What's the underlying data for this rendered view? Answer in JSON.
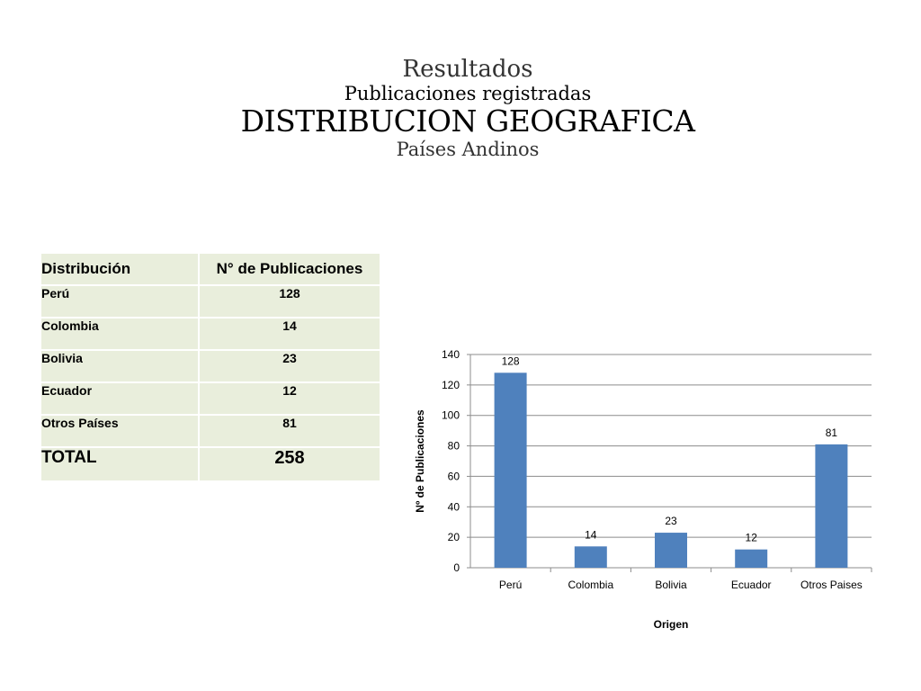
{
  "header": {
    "title": "Resultados",
    "subtitle": "Publicaciones registradas",
    "heading": "DISTRIBUCION GEOGRAFICA",
    "region": "Países Andinos"
  },
  "table": {
    "col1": "Distribución",
    "col2": "N° de Publicaciones",
    "rows": [
      {
        "name": "Perú",
        "value": "128"
      },
      {
        "name": "Colombia",
        "value": "14"
      },
      {
        "name": "Bolivia",
        "value": "23"
      },
      {
        "name": "Ecuador",
        "value": "12"
      },
      {
        "name": "Otros Países",
        "value": "81"
      }
    ],
    "total_label": "TOTAL",
    "total_value": "258"
  },
  "chart_data": {
    "type": "bar",
    "categories": [
      "Perú",
      "Colombia",
      "Bolivia",
      "Ecuador",
      "Otros Paises"
    ],
    "values": [
      128,
      14,
      23,
      12,
      81
    ],
    "title": "",
    "xlabel": "Origen",
    "ylabel": "Nº de Publicaciones",
    "ylim": [
      0,
      140
    ],
    "yticks": [
      0,
      20,
      40,
      60,
      80,
      100,
      120,
      140
    ],
    "grid": true,
    "legend": "none",
    "bar_color": "#4f81bd",
    "grid_color": "#8c8c8c"
  }
}
